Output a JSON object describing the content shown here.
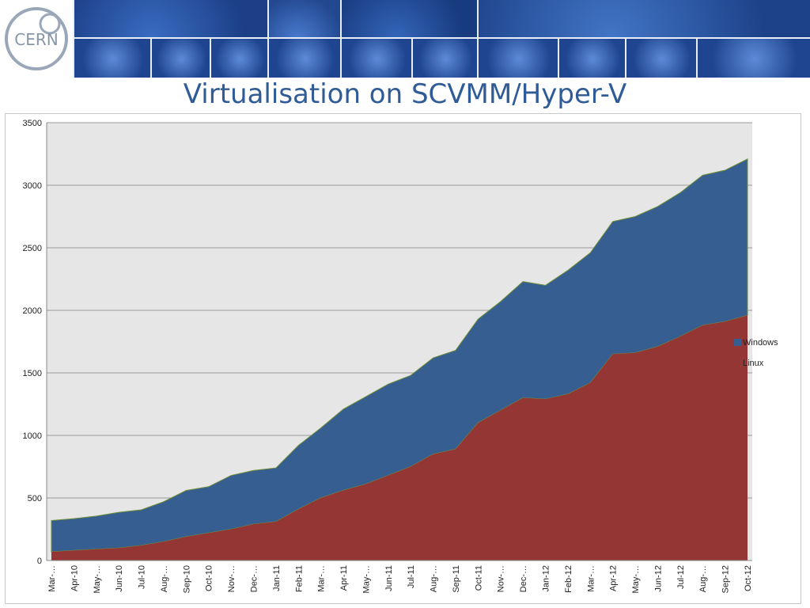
{
  "slide": {
    "title": "Virtualisation on SCVMM/Hyper-V"
  },
  "banner": {
    "logo_text": "CERN"
  },
  "colors": {
    "windows": "#375e91",
    "linux": "#943634",
    "plot_bg": "#e6e6e6",
    "title": "#2f5b97",
    "banner": "#2a58a8"
  },
  "chart_data": {
    "type": "area",
    "stacked": true,
    "title": "",
    "xlabel": "",
    "ylabel": "",
    "ylim": [
      0,
      3500
    ],
    "yticks": [
      0,
      500,
      1000,
      1500,
      2000,
      2500,
      3000,
      3500
    ],
    "grid": true,
    "legend_position": "right",
    "categories": [
      "Mar-10",
      "Apr-10",
      "May-10",
      "Jun-10",
      "Jul-10",
      "Aug-10",
      "Sep-10",
      "Oct-10",
      "Nov-10",
      "Dec-10",
      "Jan-11",
      "Feb-11",
      "Mar-11",
      "Apr-11",
      "May-11",
      "Jun-11",
      "Jul-11",
      "Aug-11",
      "Sep-11",
      "Oct-11",
      "Nov-11",
      "Dec-11",
      "Jan-12",
      "Feb-12",
      "Mar-12",
      "Apr-12",
      "May-12",
      "Jun-12",
      "Jul-12",
      "Aug-12",
      "Sep-12",
      "Oct-12"
    ],
    "tick_labels": [
      "Mar-…",
      "Apr-10",
      "May-…",
      "Jun-10",
      "Jul-10",
      "Aug-…",
      "Sep-10",
      "Oct-10",
      "Nov-…",
      "Dec-…",
      "Jan-11",
      "Feb-11",
      "Mar-…",
      "Apr-11",
      "May-…",
      "Jun-11",
      "Jul-11",
      "Aug-…",
      "Sep-11",
      "Oct-11",
      "Nov-…",
      "Dec-…",
      "Jan-12",
      "Feb-12",
      "Mar-…",
      "Apr-12",
      "May-…",
      "Jun-12",
      "Jul-12",
      "Aug-…",
      "Sep-12",
      "Oct-12"
    ],
    "series": [
      {
        "name": "Linux",
        "values": [
          70,
          80,
          90,
          100,
          120,
          150,
          190,
          220,
          250,
          290,
          310,
          410,
          500,
          560,
          610,
          680,
          750,
          850,
          890,
          1100,
          1200,
          1300,
          1290,
          1330,
          1420,
          1650,
          1660,
          1710,
          1790,
          1880,
          1910,
          1960
        ]
      },
      {
        "name": "Windows",
        "values": [
          250,
          255,
          265,
          285,
          285,
          320,
          370,
          370,
          430,
          430,
          430,
          510,
          560,
          650,
          700,
          730,
          730,
          770,
          790,
          830,
          870,
          930,
          910,
          990,
          1040,
          1060,
          1090,
          1120,
          1150,
          1200,
          1210,
          1250
        ]
      }
    ],
    "legend_order": [
      "Windows",
      "Linux"
    ]
  }
}
